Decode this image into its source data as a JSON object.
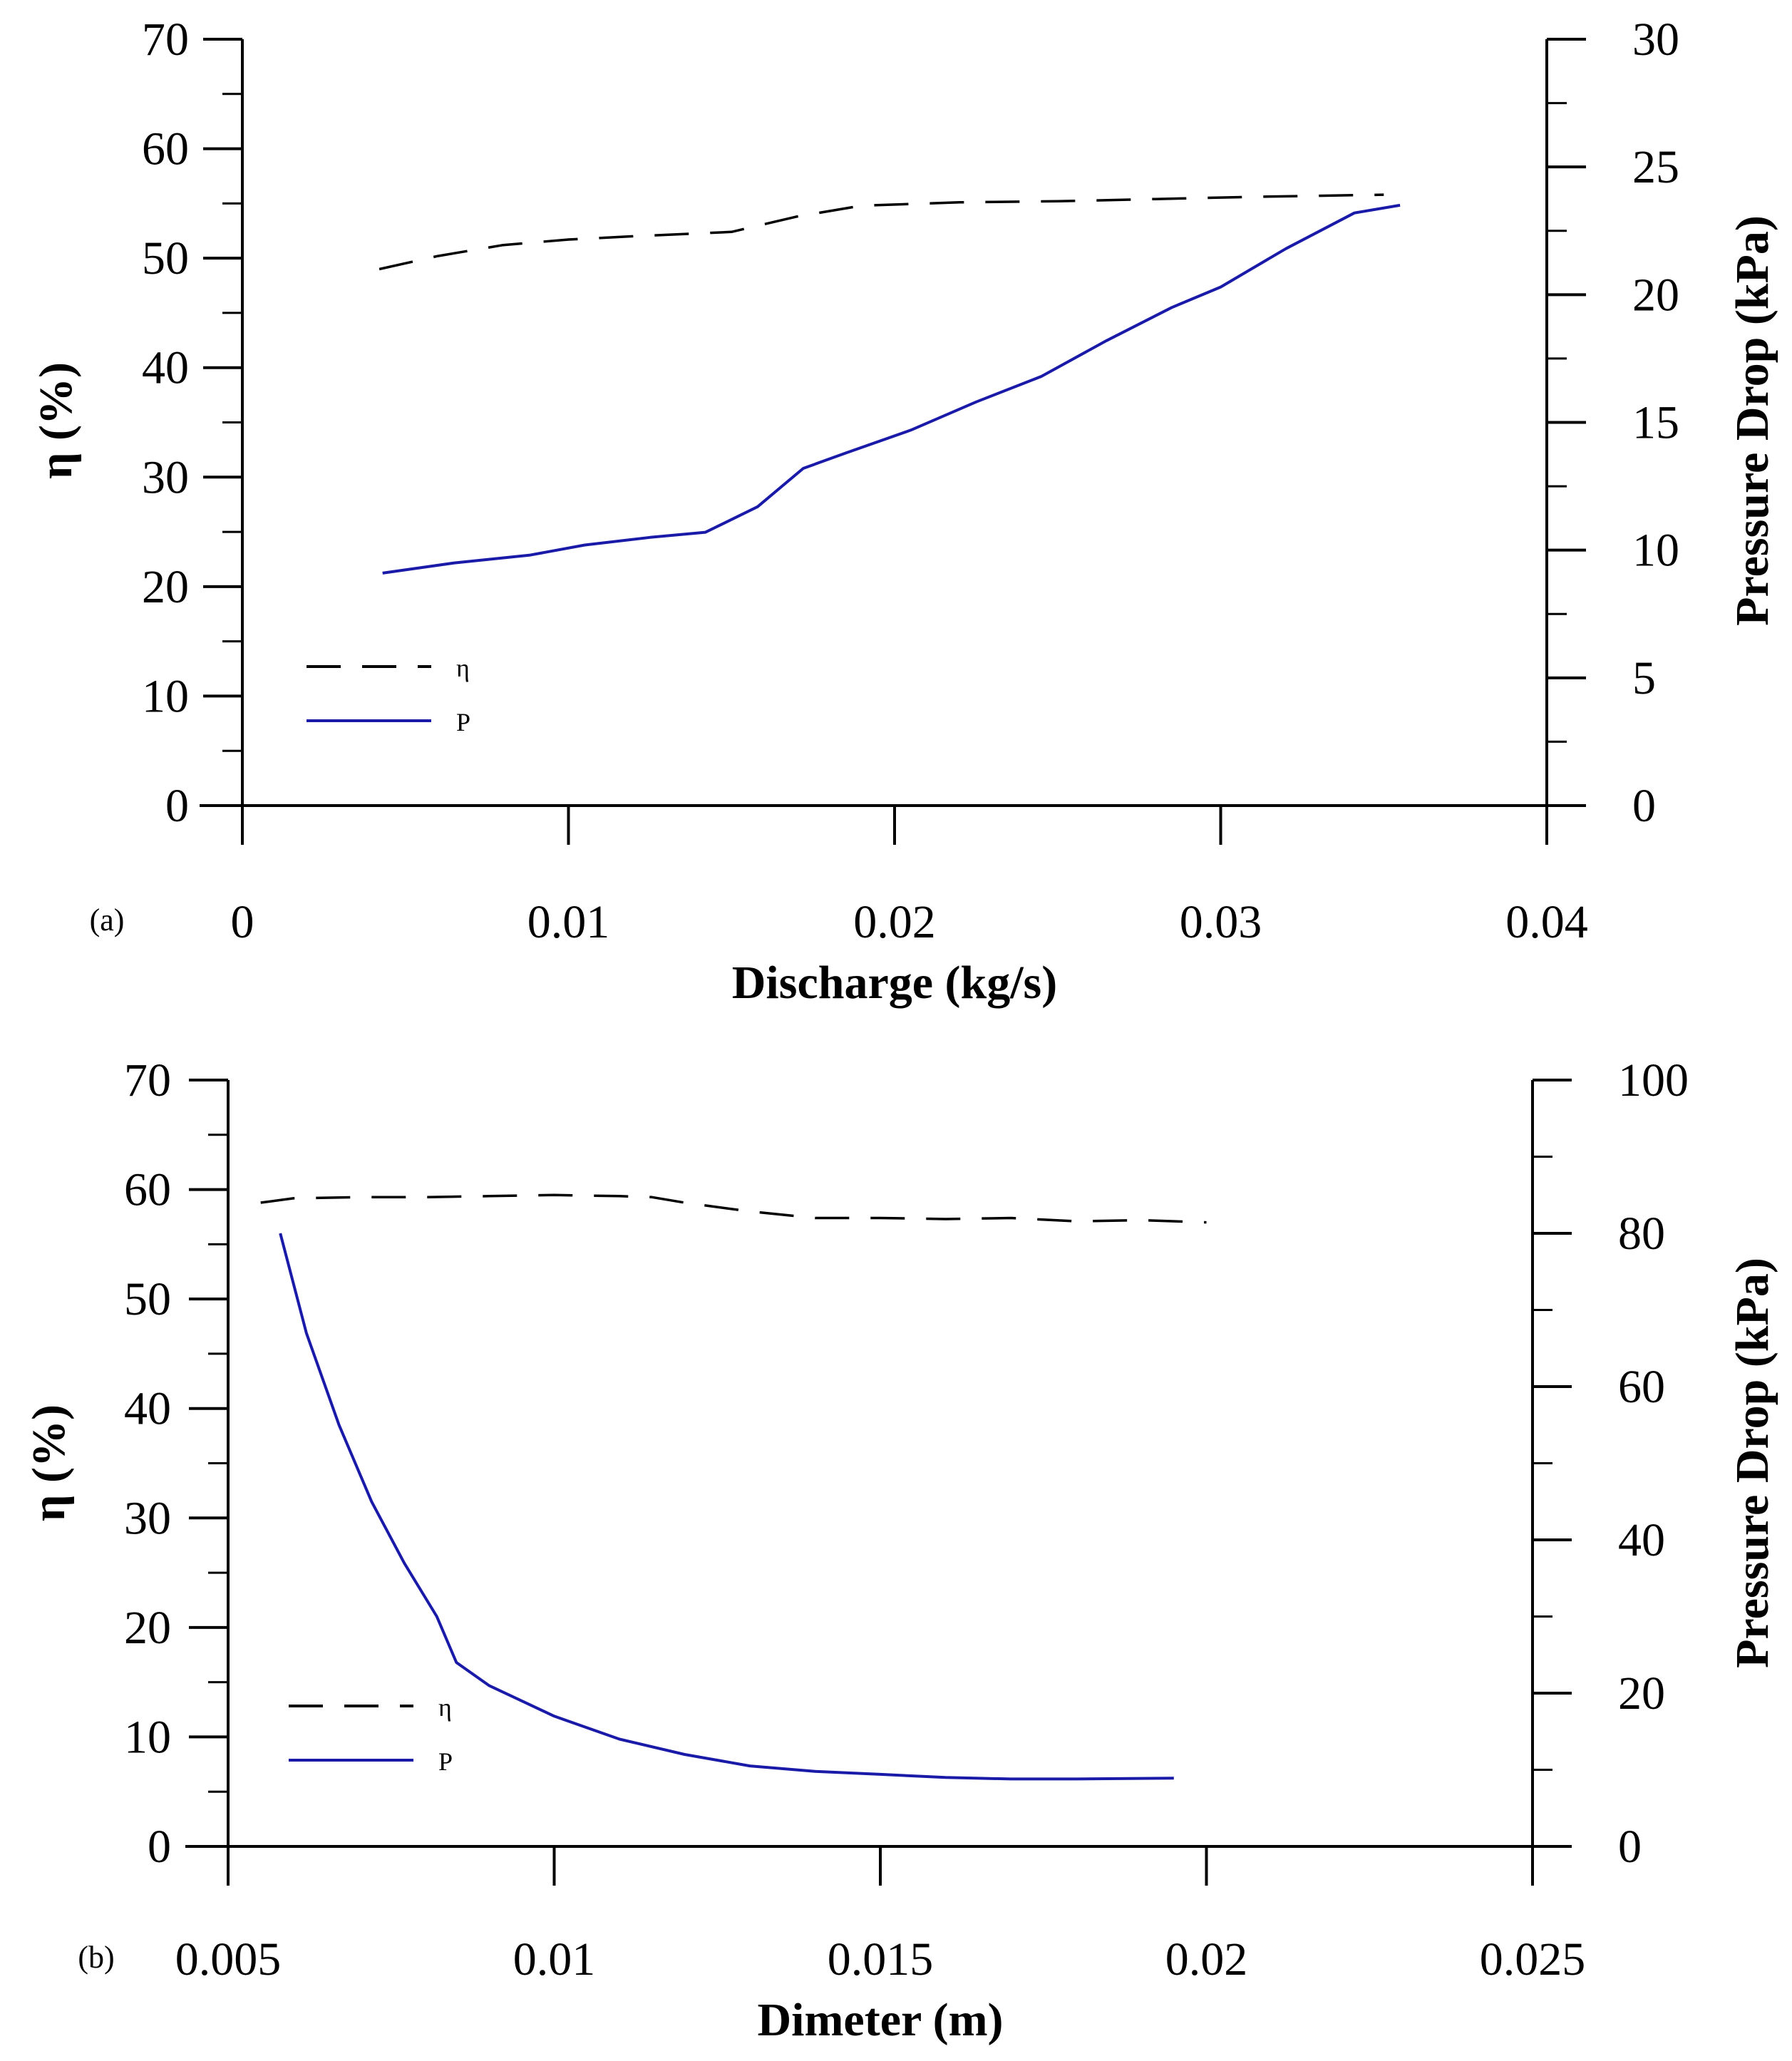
{
  "chart_data": [
    {
      "type": "line",
      "panel_label": "(a)",
      "xlabel": "Discharge (kg/s)",
      "ylabel": "η (%)",
      "ylabel_right": "Pressure Drop (kPa)",
      "xlim": [
        0,
        0.04
      ],
      "ylim": [
        0,
        70
      ],
      "ylim_right": [
        0,
        30
      ],
      "xticks": [
        0,
        0.01,
        0.02,
        0.03,
        0.04
      ],
      "xtick_labels": [
        "0",
        "0.01",
        "0.02",
        "0.03",
        "0.04"
      ],
      "yticks": [
        0,
        10,
        20,
        30,
        40,
        50,
        60,
        70
      ],
      "ytick_labels": [
        "0",
        "10",
        "20",
        "30",
        "40",
        "50",
        "60",
        "70"
      ],
      "yticks_right": [
        0,
        5,
        10,
        15,
        20,
        25,
        30
      ],
      "ytick_labels_right": [
        "0",
        "5",
        "10",
        "15",
        "20",
        "25",
        "30"
      ],
      "grid": false,
      "legend_position": "bottom-left",
      "series": [
        {
          "name": "η",
          "axis": "left",
          "style": "dashed",
          "color": "#000000",
          "x": [
            0.0042,
            0.006,
            0.008,
            0.01,
            0.012,
            0.015,
            0.017,
            0.019,
            0.022,
            0.025,
            0.028,
            0.031,
            0.033,
            0.035
          ],
          "y": [
            49.0,
            50.2,
            51.2,
            51.7,
            52.0,
            52.4,
            53.8,
            54.8,
            55.1,
            55.2,
            55.4,
            55.6,
            55.7,
            55.8
          ]
        },
        {
          "name": "P",
          "axis": "right",
          "style": "solid",
          "color": "#1a1aa8",
          "x": [
            0.0043,
            0.0065,
            0.0088,
            0.0105,
            0.0125,
            0.0142,
            0.0158,
            0.0172,
            0.0185,
            0.0205,
            0.0225,
            0.0245,
            0.0265,
            0.0285,
            0.03,
            0.032,
            0.0341,
            0.0355
          ],
          "y": [
            9.1,
            9.5,
            9.8,
            10.2,
            10.5,
            10.7,
            11.7,
            13.2,
            13.8,
            14.7,
            15.8,
            16.8,
            18.2,
            19.5,
            20.3,
            21.8,
            23.2,
            23.5
          ]
        }
      ]
    },
    {
      "type": "line",
      "panel_label": "(b)",
      "xlabel": "Dimeter (m)",
      "ylabel": "η (%)",
      "ylabel_right": "Pressure Drop (kPa)",
      "xlim": [
        0.005,
        0.025
      ],
      "ylim": [
        0,
        70
      ],
      "ylim_right": [
        0,
        100
      ],
      "xticks": [
        0.005,
        0.01,
        0.015,
        0.02,
        0.025
      ],
      "xtick_labels": [
        "0.005",
        "0.01",
        "0.015",
        "0.02",
        "0.025"
      ],
      "yticks": [
        0,
        10,
        20,
        30,
        40,
        50,
        60,
        70
      ],
      "ytick_labels": [
        "0",
        "10",
        "20",
        "30",
        "40",
        "50",
        "60",
        "70"
      ],
      "yticks_right": [
        0,
        20,
        40,
        60,
        80,
        100
      ],
      "ytick_labels_right": [
        "0",
        "20",
        "40",
        "60",
        "80",
        "100"
      ],
      "grid": false,
      "legend_position": "bottom-left",
      "series": [
        {
          "name": "η",
          "axis": "left",
          "style": "dashed",
          "color": "#000000",
          "x": [
            0.0055,
            0.006,
            0.007,
            0.008,
            0.009,
            0.01,
            0.011,
            0.0115,
            0.012,
            0.013,
            0.014,
            0.015,
            0.016,
            0.017,
            0.018,
            0.019,
            0.02
          ],
          "y": [
            58.8,
            59.2,
            59.3,
            59.3,
            59.4,
            59.5,
            59.4,
            59.3,
            58.8,
            58.0,
            57.4,
            57.4,
            57.3,
            57.4,
            57.1,
            57.2,
            57.0
          ]
        },
        {
          "name": "P",
          "axis": "right",
          "style": "solid",
          "color": "#1a1aa8",
          "x": [
            0.0058,
            0.0062,
            0.0067,
            0.0072,
            0.0077,
            0.0082,
            0.0085,
            0.009,
            0.0095,
            0.01,
            0.011,
            0.012,
            0.013,
            0.014,
            0.015,
            0.016,
            0.017,
            0.018,
            0.0195
          ],
          "y": [
            80,
            67,
            55,
            45,
            37,
            30,
            24,
            21,
            19,
            17,
            14,
            12,
            10.5,
            9.8,
            9.4,
            9.0,
            8.8,
            8.8,
            8.9
          ]
        }
      ]
    }
  ]
}
